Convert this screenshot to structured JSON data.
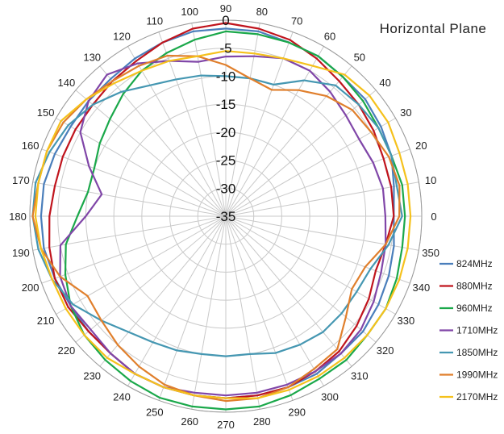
{
  "chart_data": {
    "type": "line",
    "subtype": "polar",
    "title": "Horizontal Plane",
    "angle_unit": "deg",
    "angle_ticks": [
      0,
      10,
      20,
      30,
      40,
      50,
      60,
      70,
      80,
      90,
      100,
      110,
      120,
      130,
      140,
      150,
      160,
      170,
      180,
      190,
      200,
      210,
      220,
      230,
      240,
      250,
      260,
      270,
      280,
      290,
      300,
      310,
      320,
      330,
      340,
      350
    ],
    "radial_ticks": [
      0,
      -5,
      -10,
      -15,
      -20,
      -25,
      -30,
      -35
    ],
    "rlim": [
      -35,
      0
    ],
    "grid": true,
    "legend_position": "right",
    "series": [
      {
        "name": "824MHz",
        "color": "#4a7ebb",
        "values": [
          -5,
          -4.5,
          -3.5,
          -3,
          -2.5,
          -2.5,
          -2,
          -2,
          -1.5,
          -1.5,
          -1.5,
          -2,
          -2.5,
          -3,
          -3,
          -3,
          -2.5,
          -2,
          -2,
          -2,
          -2.5,
          -3,
          -3,
          -3,
          -2.5,
          -2.5,
          -2.5,
          -2.5,
          -2.5,
          -2.5,
          -2.5,
          -3,
          -3,
          -3.5,
          -4,
          -4.5
        ]
      },
      {
        "name": "880MHz",
        "color": "#c0141d",
        "values": [
          -5,
          -5,
          -5,
          -4.5,
          -4,
          -3.5,
          -2.5,
          -1.5,
          -1,
          -0.5,
          -1,
          -2,
          -3,
          -3.5,
          -4,
          -4,
          -4,
          -4,
          -3.5,
          -3,
          -2.5,
          -2.5,
          -3,
          -3,
          -2.5,
          -2.5,
          -2.5,
          -2.5,
          -2.5,
          -2.5,
          -3,
          -3.5,
          -4.5,
          -5.5,
          -6.5,
          -6
        ]
      },
      {
        "name": "960MHz",
        "color": "#1aa84a",
        "values": [
          -3,
          -3,
          -3.5,
          -3.5,
          -3,
          -2.5,
          -2,
          -2,
          -2,
          -2,
          -3,
          -4,
          -5,
          -6.5,
          -8,
          -9,
          -10,
          -10,
          -8.5,
          -6,
          -4.5,
          -3,
          -2,
          -1.5,
          -1,
          -0.5,
          -0.5,
          -0.5,
          -0.5,
          -1,
          -1.5,
          -1.5,
          -2,
          -2,
          -2.5,
          -3
        ]
      },
      {
        "name": "1710MHz",
        "color": "#8046a8",
        "values": [
          -6.5,
          -6.5,
          -7,
          -7.5,
          -7,
          -6,
          -5,
          -5,
          -6,
          -6.5,
          -7,
          -5.5,
          -3.5,
          -2,
          -3,
          -5,
          -9,
          -12.5,
          -10,
          -5,
          -3.5,
          -3,
          -3.5,
          -3,
          -2.5,
          -2.5,
          -3,
          -3,
          -3,
          -3,
          -3,
          -3,
          -3.5,
          -4.5,
          -5.5,
          -6
        ]
      },
      {
        "name": "1850MHz",
        "color": "#4597b2",
        "values": [
          -3.5,
          -4,
          -3.5,
          -3.5,
          -4,
          -4.5,
          -7,
          -10,
          -10,
          -10,
          -9.5,
          -9,
          -8,
          -6,
          -4,
          -2.5,
          -1.5,
          -0.5,
          -0.5,
          -1,
          -2,
          -3.5,
          -6,
          -8,
          -9,
          -9.5,
          -10,
          -10,
          -10,
          -9,
          -8.5,
          -8,
          -8,
          -8,
          -7.5,
          -5.5
        ]
      },
      {
        "name": "1990MHz",
        "color": "#e07f2c",
        "values": [
          -4,
          -3.5,
          -4,
          -5,
          -5.5,
          -7,
          -9,
          -11,
          -10,
          -8,
          -6,
          -4.5,
          -4,
          -3.5,
          -2.5,
          -1.5,
          -1,
          -1,
          -0.5,
          -1.5,
          -3.5,
          -6.5,
          -6,
          -5,
          -4,
          -3,
          -2.5,
          -2,
          -2,
          -2.5,
          -3.5,
          -4,
          -7,
          -9,
          -8.5,
          -6
        ]
      },
      {
        "name": "2170MHz",
        "color": "#f5c11c",
        "values": [
          -2,
          -2,
          -2,
          -1.5,
          -1.5,
          -2,
          -4,
          -5,
          -5.5,
          -5.5,
          -6,
          -5.5,
          -5,
          -4,
          -2.5,
          -1,
          -1,
          -1,
          -1,
          -1.5,
          -2,
          -2,
          -2,
          -2,
          -2.5,
          -2.5,
          -2.5,
          -2.5,
          -2,
          -2,
          -2,
          -2,
          -2,
          -2,
          -2,
          -2
        ]
      }
    ]
  }
}
